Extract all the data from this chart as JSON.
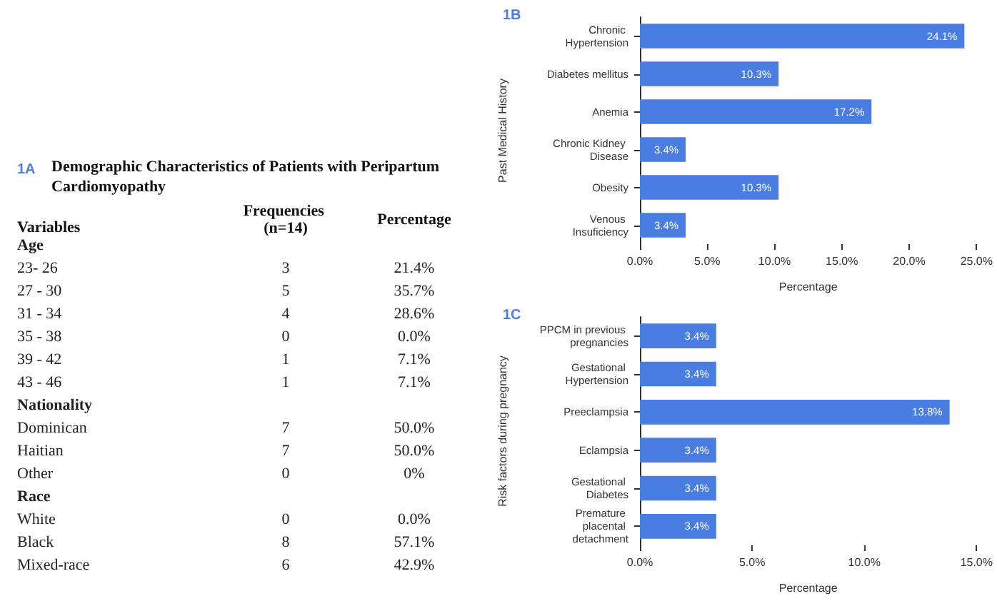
{
  "chart_data": [
    {
      "type": "other",
      "data_labels": true,
      "title": "Demographic Characteristics of Patients with Peripartum Cardiomyopathy",
      "annotations": [
        "1A"
      ],
      "ylabel": "Variables",
      "categories": [
        "Age",
        "23- 26",
        "27 - 30",
        "31 - 34",
        "35 - 38",
        "39 - 42",
        "43 - 46",
        "Nationality",
        "Dominican",
        "Haitian",
        "Other",
        "Race",
        "White",
        "Black",
        "Mixed-race"
      ],
      "series": [
        {
          "name": "Frequencies (n=14)",
          "values": [
            null,
            3,
            5,
            4,
            0,
            1,
            1,
            null,
            7,
            7,
            0,
            null,
            0,
            8,
            6
          ]
        },
        {
          "name": "Percentage",
          "values": [
            null,
            null,
            null,
            null,
            null,
            null,
            null,
            null,
            null,
            null,
            null,
            null,
            null,
            null,
            null
          ],
          "value_labels": [
            null,
            "21.4%",
            "35.7%",
            "28.6%",
            "0.0%",
            "7.1%",
            "7.1%",
            null,
            "50.0%",
            "50.0%",
            "0%",
            null,
            "0.0%",
            "57.1%",
            "42.9%"
          ]
        }
      ]
    },
    {
      "type": "bar",
      "orientation": "horizontal",
      "annotations": [
        "1B"
      ],
      "xlabel": "Percentage",
      "ylabel": "Past Medical History",
      "color": "#4a7de2",
      "categories": [
        "Chronic Hypertension",
        "Diabetes mellitus",
        "Anemia",
        "Chronic Kidney Disease",
        "Obesity",
        "Venous Insuficiency"
      ],
      "values": [
        24.1,
        10.3,
        17.2,
        3.4,
        10.3,
        3.4
      ],
      "value_labels": [
        "24.1%",
        "10.3%",
        "17.2%",
        "3.4%",
        "10.3%",
        "3.4%"
      ],
      "xlim": [
        0,
        25
      ],
      "xticks": [
        {
          "value": 0,
          "label": "0.0%"
        },
        {
          "value": 5,
          "label": "5.0%"
        },
        {
          "value": 10,
          "label": "10.0%"
        },
        {
          "value": 15,
          "label": "15.0%"
        },
        {
          "value": 20,
          "label": "20.0%"
        },
        {
          "value": 25,
          "label": "25.0%"
        }
      ]
    },
    {
      "type": "bar",
      "orientation": "horizontal",
      "annotations": [
        "1C"
      ],
      "xlabel": "Percentage",
      "ylabel": "Risk factors during pregnancy",
      "color": "#4a7de2",
      "categories": [
        "PPCM in previous pregnancies",
        "Gestational Hypertension",
        "Preeclampsia",
        "Eclampsia",
        "Gestational Diabetes",
        "Premature placental detachment"
      ],
      "values": [
        3.4,
        3.4,
        13.8,
        3.4,
        3.4,
        3.4
      ],
      "value_labels": [
        "3.4%",
        "3.4%",
        "13.8%",
        "3.4%",
        "3.4%",
        "3.4%"
      ],
      "xlim": [
        0,
        15
      ],
      "xticks": [
        {
          "value": 0,
          "label": "0.0%"
        },
        {
          "value": 5,
          "label": "5.0%"
        },
        {
          "value": 10,
          "label": "10.0%"
        },
        {
          "value": 15,
          "label": "15.0%"
        }
      ]
    }
  ]
}
